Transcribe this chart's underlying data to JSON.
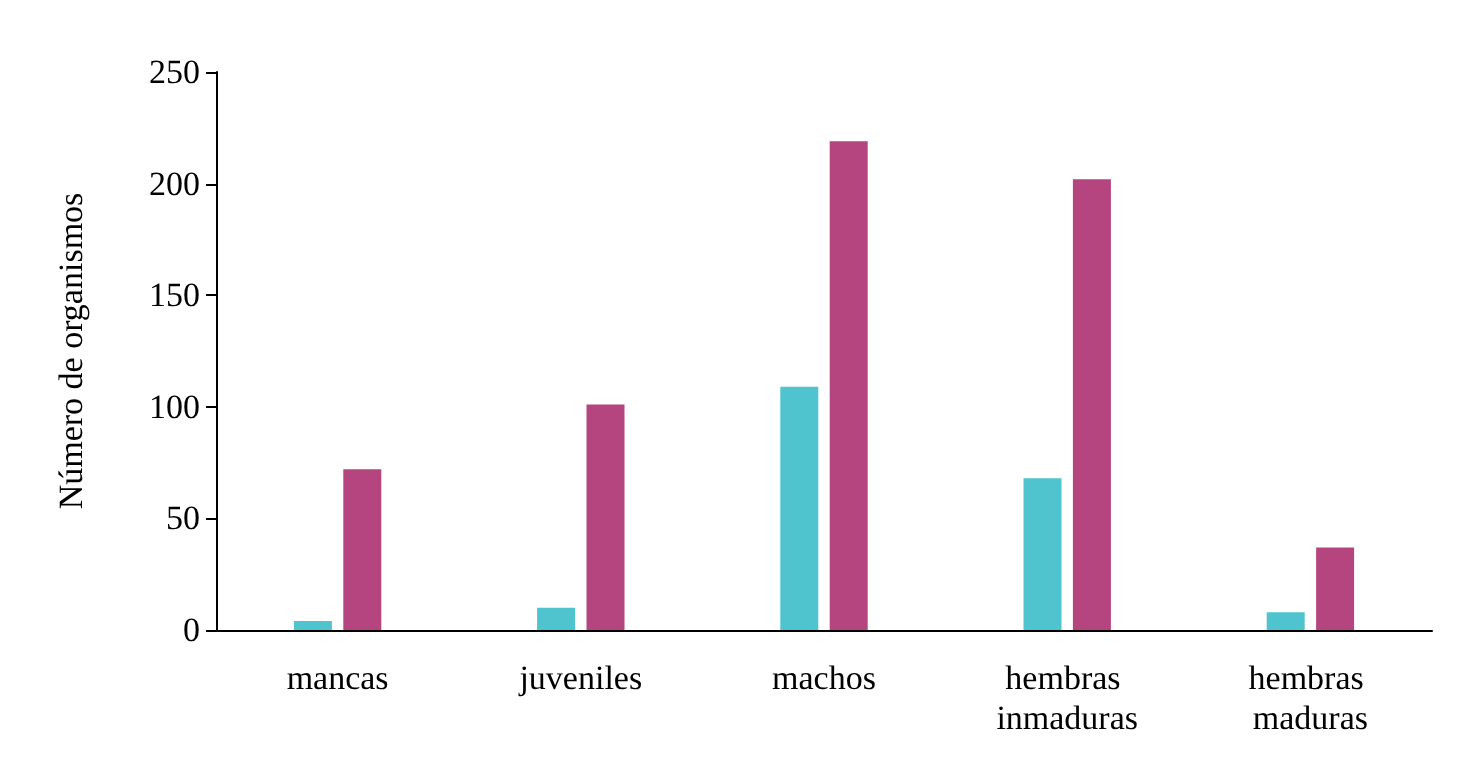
{
  "chart_data": {
    "type": "bar",
    "ylabel": "Número de organismos",
    "categories": [
      "mancas",
      "juveniles",
      "machos",
      "hembras inmaduras",
      "hembras maduras"
    ],
    "series": [
      {
        "color": "#4fc4cf",
        "values": [
          4,
          10,
          109,
          68,
          8
        ]
      },
      {
        "color": "#b5457f",
        "values": [
          72,
          101,
          219,
          202,
          37
        ]
      }
    ],
    "ylim": [
      0,
      250
    ],
    "yticks": [
      0,
      50,
      100,
      150,
      200,
      250
    ],
    "grid": false
  }
}
